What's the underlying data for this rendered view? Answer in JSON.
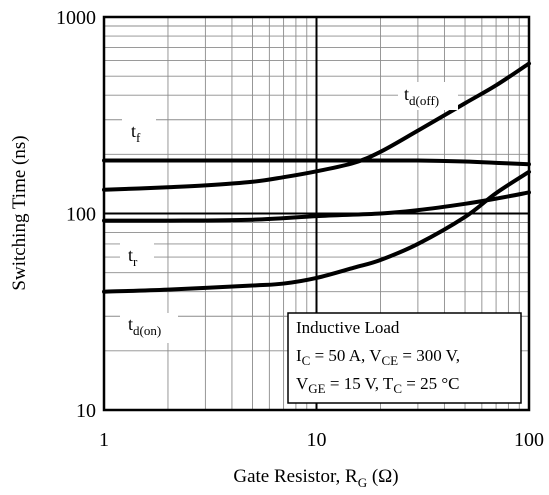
{
  "chart_data": {
    "type": "line",
    "title": "",
    "xlabel": {
      "main": "Gate Resistor, R",
      "sub": "G",
      "unit": " (Ω)"
    },
    "ylabel": "Switching Time (ns)",
    "xscale": "log",
    "yscale": "log",
    "xlim": [
      1,
      100
    ],
    "ylim": [
      10,
      1000
    ],
    "grid": true,
    "x_ticks": [
      {
        "value": 1,
        "label": "1"
      },
      {
        "value": 10,
        "label": "10"
      },
      {
        "value": 100,
        "label": "100"
      }
    ],
    "y_ticks": [
      {
        "value": 10,
        "label": "10"
      },
      {
        "value": 100,
        "label": "100"
      },
      {
        "value": 1000,
        "label": "1000"
      }
    ],
    "series": [
      {
        "name": "t_f",
        "label_main": "t",
        "label_sub": "f",
        "x": [
          1,
          2,
          5,
          10,
          20,
          30,
          50,
          70,
          100
        ],
        "y": [
          186,
          186,
          186,
          186,
          186,
          186,
          184,
          181,
          178
        ]
      },
      {
        "name": "t_d(off)",
        "label_main": "t",
        "label_sub": "d(off)",
        "x": [
          1,
          2,
          3,
          5,
          7,
          10,
          15,
          20,
          30,
          50,
          70,
          100
        ],
        "y": [
          132,
          136,
          139,
          145,
          153,
          164,
          181,
          206,
          264,
          364,
          449,
          580
        ]
      },
      {
        "name": "t_r",
        "label_main": "t",
        "label_sub": "r",
        "x": [
          1,
          2,
          5,
          10,
          20,
          30,
          50,
          70,
          100
        ],
        "y": [
          92,
          92,
          93,
          97,
          100,
          104,
          112,
          119,
          128
        ]
      },
      {
        "name": "t_d(on)",
        "label_main": "t",
        "label_sub": "d(on)",
        "x": [
          1,
          2,
          5,
          7,
          10,
          15,
          20,
          30,
          50,
          70,
          100
        ],
        "y": [
          40,
          41,
          43,
          44,
          47,
          53,
          58,
          70,
          96,
          127,
          163
        ]
      }
    ],
    "annotation": {
      "line1": "Inductive Load",
      "line2": {
        "p1": "I",
        "s1": "C",
        "p2": " = 50 A, V",
        "s2": "CE",
        "p3": " = 300 V,"
      },
      "line3": {
        "p1": "V",
        "s1": "GE",
        "p2": " = 15 V, T",
        "s2": "C",
        "p3": " = 25 °C"
      }
    }
  }
}
